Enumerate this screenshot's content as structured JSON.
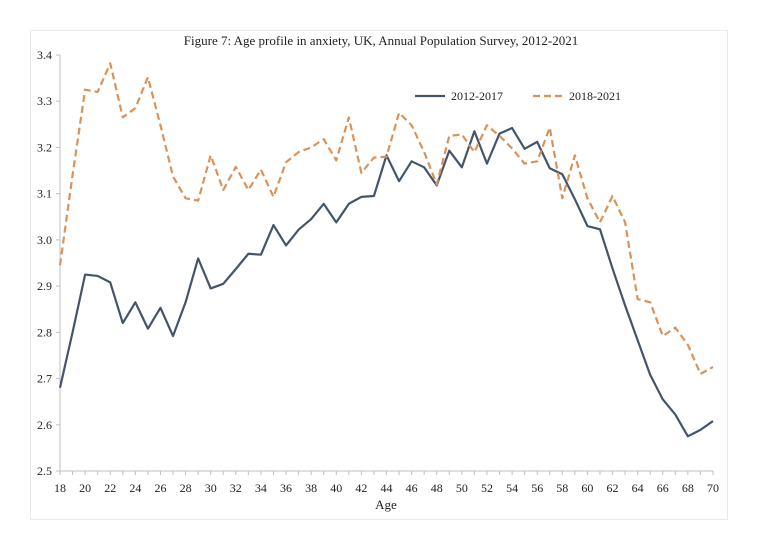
{
  "chart_data": {
    "type": "line",
    "title": "Figure 7: Age profile in anxiety, UK, Annual Population Survey, 2012-2021",
    "xlabel": "Age",
    "ylabel": "",
    "xlim": [
      18,
      70
    ],
    "ylim": [
      2.5,
      3.4
    ],
    "x_ticks": [
      "18",
      "20",
      "22",
      "24",
      "26",
      "28",
      "30",
      "32",
      "34",
      "36",
      "38",
      "40",
      "42",
      "44",
      "46",
      "48",
      "50",
      "52",
      "54",
      "56",
      "58",
      "60",
      "62",
      "64",
      "66",
      "68",
      "70"
    ],
    "y_ticks": [
      "2.5",
      "2.6",
      "2.7",
      "2.8",
      "2.9",
      "3.0",
      "3.1",
      "3.2",
      "3.3",
      "3.4"
    ],
    "grid": false,
    "legend_position": "top-right",
    "x": [
      18,
      19,
      20,
      21,
      22,
      23,
      24,
      25,
      26,
      27,
      28,
      29,
      30,
      31,
      32,
      33,
      34,
      35,
      36,
      37,
      38,
      39,
      40,
      41,
      42,
      43,
      44,
      45,
      46,
      47,
      48,
      49,
      50,
      51,
      52,
      53,
      54,
      55,
      56,
      57,
      58,
      59,
      60,
      61,
      62,
      63,
      64,
      65,
      66,
      67,
      68,
      69,
      70
    ],
    "series": [
      {
        "name": "2012-2017",
        "color": "#44546a",
        "style": "solid",
        "values": [
          2.68,
          2.8,
          2.925,
          2.922,
          2.908,
          2.82,
          2.865,
          2.808,
          2.853,
          2.792,
          2.865,
          2.96,
          2.895,
          2.905,
          2.937,
          2.97,
          2.968,
          3.032,
          2.988,
          3.022,
          3.045,
          3.078,
          3.038,
          3.078,
          3.093,
          3.095,
          3.183,
          3.127,
          3.17,
          3.157,
          3.118,
          3.193,
          3.157,
          3.235,
          3.165,
          3.23,
          3.242,
          3.197,
          3.212,
          3.155,
          3.142,
          3.088,
          3.03,
          3.023,
          2.938,
          2.858,
          2.783,
          2.708,
          2.655,
          2.622,
          2.575,
          2.589,
          2.608
        ]
      },
      {
        "name": "2018-2021",
        "color": "#d9935a",
        "style": "dashed",
        "values": [
          2.945,
          3.14,
          3.325,
          3.32,
          3.382,
          3.265,
          3.285,
          3.352,
          3.248,
          3.137,
          3.09,
          3.085,
          3.183,
          3.108,
          3.158,
          3.108,
          3.152,
          3.093,
          3.168,
          3.19,
          3.2,
          3.218,
          3.172,
          3.265,
          3.145,
          3.178,
          3.18,
          3.275,
          3.248,
          3.19,
          3.12,
          3.225,
          3.228,
          3.19,
          3.248,
          3.225,
          3.198,
          3.165,
          3.17,
          3.243,
          3.09,
          3.183,
          3.09,
          3.038,
          3.095,
          3.038,
          2.872,
          2.865,
          2.792,
          2.81,
          2.773,
          2.71,
          2.725
        ]
      }
    ]
  }
}
